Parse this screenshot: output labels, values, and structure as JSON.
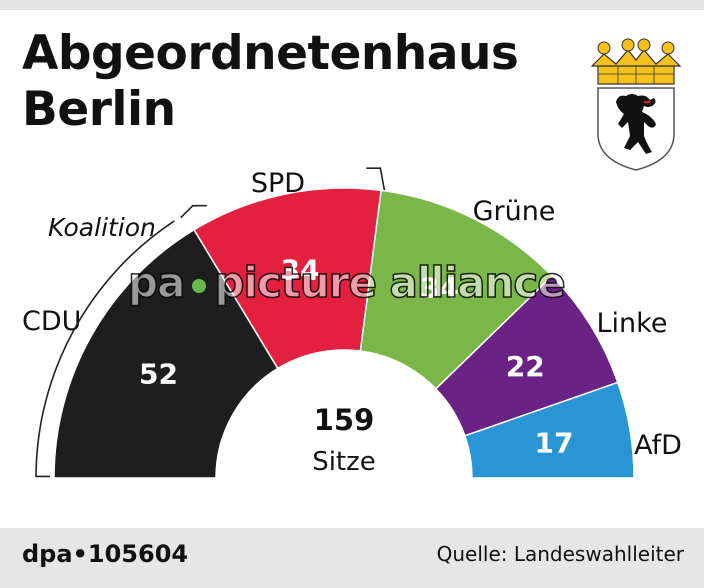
{
  "header": {
    "title_line1": "Abgeordnetenhaus",
    "title_line2": "Berlin"
  },
  "chart_data": {
    "type": "pie",
    "total": 159,
    "total_label": "Sitze",
    "series": [
      {
        "name": "CDU",
        "value": 52,
        "color": "#1e1e1e"
      },
      {
        "name": "SPD",
        "value": 34,
        "color": "#e3203f"
      },
      {
        "name": "Grüne",
        "value": 34,
        "color": "#7ab648"
      },
      {
        "name": "Linke",
        "value": 22,
        "color": "#6a2384"
      },
      {
        "name": "AfD",
        "value": 17,
        "color": "#2a95d4"
      }
    ],
    "coalition_label": "Koalition",
    "coalition_members": [
      "CDU",
      "SPD"
    ]
  },
  "footer": {
    "source_id": "dpa•105604",
    "source": "Quelle: Landeswahlleiter"
  },
  "watermark": {
    "part1": "pa",
    "part2": "picture alliance"
  },
  "crest": {
    "icon": "berlin-bear-crest-icon",
    "crown_color": "#f4c21b",
    "bear_color": "#111111"
  }
}
